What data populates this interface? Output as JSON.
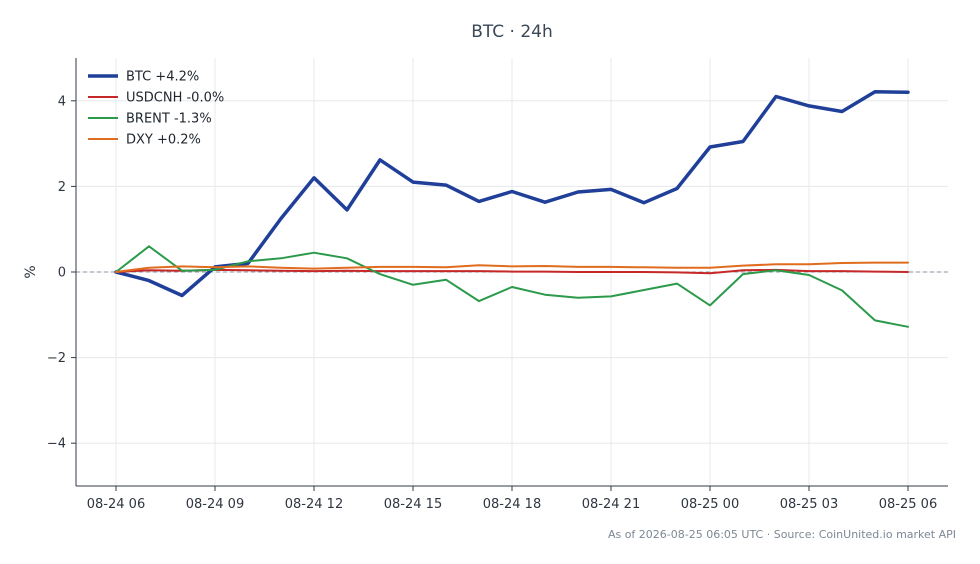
{
  "chart_data": {
    "type": "line",
    "title": "BTC · 24h",
    "ylabel": "%",
    "xlabel": "",
    "ylim": [
      -5,
      5
    ],
    "yticks": [
      -4,
      -2,
      0,
      2,
      4
    ],
    "ytick_labels": [
      "−4",
      "−2",
      "0",
      "2",
      "4"
    ],
    "x_tick_labels": [
      "08-24 06",
      "08-24 09",
      "08-24 12",
      "08-24 15",
      "08-24 18",
      "08-24 21",
      "08-25 00",
      "08-25 03",
      "08-25 06"
    ],
    "x_tick_hours": [
      0,
      3,
      6,
      9,
      12,
      15,
      18,
      21,
      24
    ],
    "x_hours": [
      0,
      1,
      2,
      3,
      4,
      5,
      6,
      7,
      8,
      9,
      10,
      11,
      12,
      13,
      14,
      15,
      16,
      17,
      18,
      19,
      20,
      21,
      22,
      23,
      24
    ],
    "grid": true,
    "legend_position": "top-left",
    "zero_line": true,
    "series": [
      {
        "name": "BTC +4.2%",
        "color": "#1f3f99",
        "width": 3.5,
        "values": [
          0.0,
          -0.2,
          -0.55,
          0.12,
          0.2,
          1.25,
          2.2,
          1.45,
          2.62,
          2.1,
          2.03,
          1.65,
          1.88,
          1.63,
          1.87,
          1.93,
          1.62,
          1.95,
          2.92,
          3.05,
          4.1,
          3.88,
          3.75,
          4.21,
          4.2
        ]
      },
      {
        "name": "USDCNH -0.0%",
        "color": "#c62828",
        "width": 2,
        "values": [
          0.0,
          0.04,
          0.03,
          0.05,
          0.04,
          0.03,
          0.02,
          0.03,
          0.02,
          0.02,
          0.02,
          0.02,
          0.01,
          0.01,
          0.0,
          0.0,
          0.0,
          -0.01,
          -0.03,
          0.04,
          0.05,
          0.02,
          0.02,
          0.01,
          0.0
        ]
      },
      {
        "name": "BRENT -1.3%",
        "color": "#2b9a4a",
        "width": 2,
        "values": [
          0.0,
          0.6,
          0.03,
          0.05,
          0.25,
          0.32,
          0.45,
          0.32,
          -0.05,
          -0.3,
          -0.18,
          -0.68,
          -0.35,
          -0.53,
          -0.6,
          -0.57,
          -0.42,
          -0.27,
          -0.78,
          -0.05,
          0.04,
          -0.07,
          -0.43,
          -1.13,
          -1.28
        ]
      },
      {
        "name": "DXY +0.2%",
        "color": "#e06c1f",
        "width": 2,
        "values": [
          0.0,
          0.1,
          0.13,
          0.11,
          0.13,
          0.1,
          0.08,
          0.1,
          0.12,
          0.12,
          0.11,
          0.16,
          0.13,
          0.14,
          0.12,
          0.12,
          0.11,
          0.1,
          0.1,
          0.15,
          0.18,
          0.18,
          0.21,
          0.22,
          0.22
        ]
      }
    ]
  },
  "footer": "As of 2026-08-25 06:05 UTC · Source: CoinUnited.io market API"
}
